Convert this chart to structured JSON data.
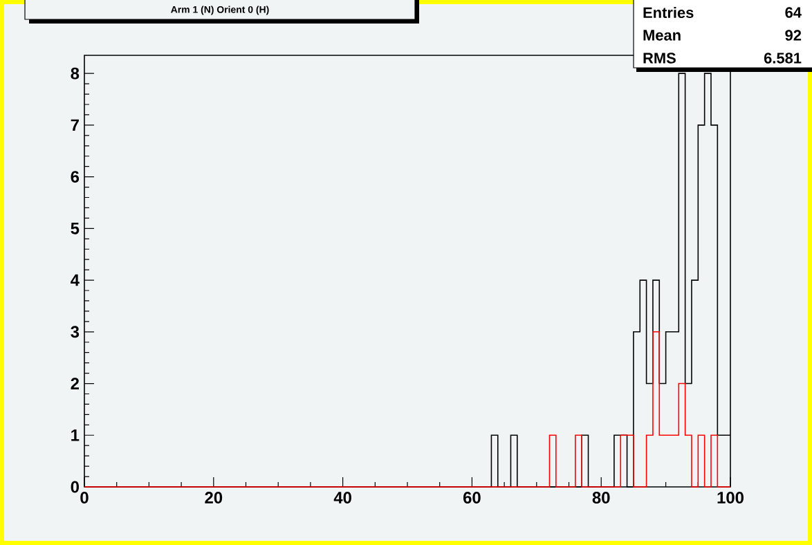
{
  "chart_data": {
    "type": "histogram",
    "title": "Arm 1 (N) Orient 0 (H)",
    "bins": [
      0,
      1,
      2,
      3,
      4,
      5,
      6,
      7,
      8,
      9,
      10,
      11,
      12,
      13,
      14,
      15,
      16,
      17,
      18,
      19,
      20,
      21,
      22,
      23,
      24,
      25,
      26,
      27,
      28,
      29,
      30,
      31,
      32,
      33,
      34,
      35,
      36,
      37,
      38,
      39,
      40,
      41,
      42,
      43,
      44,
      45,
      46,
      47,
      48,
      49,
      50,
      51,
      52,
      53,
      54,
      55,
      56,
      57,
      58,
      59,
      60,
      61,
      62,
      63,
      64,
      65,
      66,
      67,
      68,
      69,
      70,
      71,
      72,
      73,
      74,
      75,
      76,
      77,
      78,
      79,
      80,
      81,
      82,
      83,
      84,
      85,
      86,
      87,
      88,
      89,
      90,
      91,
      92,
      93,
      94,
      95,
      96,
      97,
      98,
      99,
      100
    ],
    "series": [
      {
        "color": "#000000",
        "values": [
          0,
          0,
          0,
          0,
          0,
          0,
          0,
          0,
          0,
          0,
          0,
          0,
          0,
          0,
          0,
          0,
          0,
          0,
          0,
          0,
          0,
          0,
          0,
          0,
          0,
          0,
          0,
          0,
          0,
          0,
          0,
          0,
          0,
          0,
          0,
          0,
          0,
          0,
          0,
          0,
          0,
          0,
          0,
          0,
          0,
          0,
          0,
          0,
          0,
          0,
          0,
          0,
          0,
          0,
          0,
          0,
          0,
          0,
          0,
          0,
          0,
          0,
          0,
          1,
          0,
          0,
          1,
          0,
          0,
          0,
          0,
          0,
          0,
          0,
          0,
          0,
          0,
          1,
          0,
          0,
          0,
          0,
          1,
          1,
          0,
          3,
          4,
          2,
          4,
          2,
          3,
          3,
          8,
          2,
          4,
          7,
          8,
          7,
          1,
          1
        ]
      },
      {
        "color": "#ff0000",
        "values": [
          0,
          0,
          0,
          0,
          0,
          0,
          0,
          0,
          0,
          0,
          0,
          0,
          0,
          0,
          0,
          0,
          0,
          0,
          0,
          0,
          0,
          0,
          0,
          0,
          0,
          0,
          0,
          0,
          0,
          0,
          0,
          0,
          0,
          0,
          0,
          0,
          0,
          0,
          0,
          0,
          0,
          0,
          0,
          0,
          0,
          0,
          0,
          0,
          0,
          0,
          0,
          0,
          0,
          0,
          0,
          0,
          0,
          0,
          0,
          0,
          0,
          0,
          0,
          0,
          0,
          0,
          0,
          0,
          0,
          0,
          0,
          0,
          1,
          0,
          0,
          0,
          1,
          0,
          0,
          0,
          0,
          0,
          0,
          1,
          1,
          0,
          0,
          1,
          3,
          1,
          1,
          1,
          2,
          1,
          0,
          1,
          0,
          1,
          0,
          0
        ]
      }
    ],
    "xlim": [
      0,
      100
    ],
    "xticks": [
      0,
      20,
      40,
      60,
      80,
      100
    ],
    "ylim": [
      0,
      8.35
    ],
    "yticks": [
      0,
      1,
      2,
      3,
      4,
      5,
      6,
      7,
      8
    ],
    "annotations": [
      "Entries",
      "64",
      "Mean",
      "92",
      "RMS",
      "6.581"
    ]
  }
}
